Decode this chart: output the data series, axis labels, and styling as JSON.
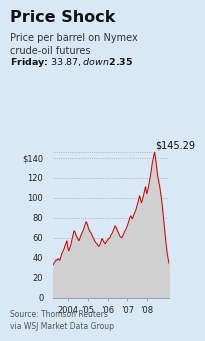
{
  "title": "Price Shock",
  "subtitle": "Price per barrel on Nymex\ncrude-oil futures",
  "friday_label": "Friday: $33.87, down $2.35",
  "peak_label": "$145.29",
  "ylabel_ticks": [
    0,
    20,
    40,
    60,
    80,
    100,
    120,
    140
  ],
  "ytick_labels": [
    "0",
    "20",
    "40",
    "60",
    "80",
    "100",
    "120",
    "$140"
  ],
  "xlim_start": 2003.25,
  "xlim_end": 2009.1,
  "ylim": [
    0,
    152
  ],
  "xtick_positions": [
    2004,
    2005,
    2006,
    2007,
    2008
  ],
  "xtick_labels": [
    "2004",
    "’05",
    "’06",
    "’07",
    "’08"
  ],
  "line_color": "#cc0000",
  "fill_color": "#d0d0d0",
  "background_color": "#d8e8f5",
  "source_text": "Source: Thomson Reuters\nvia WSJ Market Data Group",
  "grid_color": "#999999",
  "title_fontsize": 11.5,
  "subtitle_fontsize": 7.0,
  "friday_fontsize": 6.8,
  "peak_fontsize": 7.0,
  "tick_fontsize": 6.0,
  "source_fontsize": 5.5,
  "oil_prices": [
    33.0,
    34.0,
    35.5,
    36.0,
    37.5,
    38.0,
    37.5,
    38.5,
    39.0,
    38.0,
    37.5,
    39.0,
    41.0,
    43.5,
    45.0,
    46.5,
    48.0,
    49.5,
    52.0,
    53.5,
    55.0,
    57.0,
    52.0,
    48.5,
    47.0,
    49.0,
    51.0,
    53.0,
    56.0,
    59.0,
    62.0,
    65.0,
    67.0,
    66.0,
    64.5,
    62.0,
    61.0,
    60.0,
    58.5,
    57.0,
    58.0,
    60.0,
    62.0,
    63.5,
    65.0,
    66.5,
    68.0,
    70.0,
    72.0,
    74.0,
    76.0,
    75.0,
    73.5,
    71.0,
    69.0,
    67.5,
    66.0,
    65.5,
    64.0,
    62.5,
    61.0,
    60.0,
    58.5,
    57.0,
    56.0,
    55.0,
    54.5,
    53.5,
    52.5,
    51.5,
    52.0,
    53.0,
    55.0,
    57.0,
    59.0,
    58.5,
    57.0,
    56.0,
    55.0,
    54.0,
    55.0,
    56.0,
    57.5,
    58.0,
    59.0,
    59.5,
    60.0,
    61.5,
    63.0,
    64.0,
    65.0,
    67.0,
    68.5,
    70.0,
    72.0,
    71.0,
    69.5,
    68.0,
    66.5,
    65.0,
    63.5,
    62.0,
    61.0,
    60.5,
    60.0,
    61.0,
    62.5,
    64.0,
    65.5,
    67.0,
    68.0,
    69.5,
    71.0,
    73.0,
    75.0,
    77.0,
    79.5,
    81.0,
    82.0,
    80.5,
    79.0,
    80.0,
    82.5,
    84.0,
    85.5,
    87.0,
    89.0,
    91.5,
    94.0,
    96.0,
    99.0,
    102.0,
    100.0,
    97.5,
    95.0,
    97.0,
    99.5,
    102.0,
    105.0,
    108.0,
    111.0,
    107.0,
    104.0,
    106.0,
    109.0,
    112.5,
    116.0,
    120.0,
    124.0,
    128.0,
    133.0,
    137.0,
    140.0,
    143.0,
    145.29,
    141.0,
    136.0,
    130.0,
    124.0,
    120.5,
    117.0,
    113.0,
    109.5,
    105.0,
    100.0,
    95.0,
    89.0,
    82.0,
    75.0,
    68.0,
    61.0,
    55.0,
    49.0,
    44.0,
    40.0,
    36.5,
    33.87
  ]
}
